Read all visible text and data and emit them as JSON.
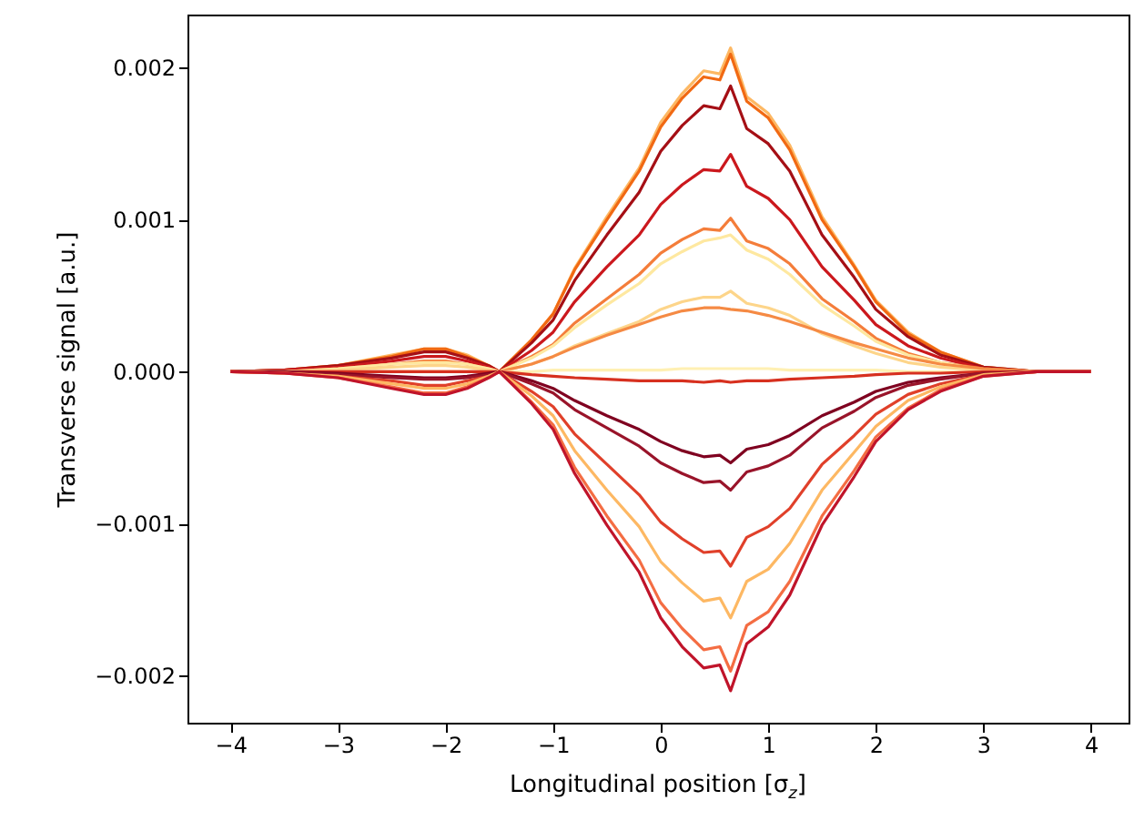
{
  "chart_data": {
    "type": "line",
    "xlabel": "Longitudinal position [σ$_{z}$]",
    "ylabel": "Transverse signal [a.u.]",
    "x": [
      -4,
      -3.5,
      -3,
      -2.5,
      -2.2,
      -2,
      -1.8,
      -1.6,
      -1.5,
      -1.2,
      -1,
      -0.8,
      -0.5,
      -0.2,
      0,
      0.2,
      0.4,
      0.55,
      0.65,
      0.8,
      1,
      1.2,
      1.5,
      1.8,
      2,
      2.3,
      2.6,
      3,
      3.5,
      4
    ],
    "xlim": [
      -4.4,
      4.35
    ],
    "ylim": [
      -0.00231,
      0.00235
    ],
    "xticks": [
      {
        "value": -4,
        "label": "−4"
      },
      {
        "value": -3,
        "label": "−3"
      },
      {
        "value": -2,
        "label": "−2"
      },
      {
        "value": -1,
        "label": "−1"
      },
      0,
      1,
      2,
      3,
      4
    ],
    "yticks": [
      {
        "value": -0.002,
        "label": "−0.002"
      },
      {
        "value": -0.001,
        "label": "−0.001"
      },
      {
        "value": 0,
        "label": "0.000"
      },
      {
        "value": 0.001,
        "label": "0.001"
      },
      {
        "value": 0.002,
        "label": "0.002"
      }
    ],
    "series": [
      {
        "color": "#fdb863",
        "values": [
          0,
          1e-05,
          4e-05,
          0.00011,
          0.00015,
          0.00015,
          0.00011,
          4e-05,
          0,
          0.00021,
          0.00038,
          0.00068,
          0.00102,
          0.00134,
          0.00164,
          0.00183,
          0.00198,
          0.00196,
          0.00213,
          0.00181,
          0.0017,
          0.00149,
          0.00102,
          0.0007,
          0.00047,
          0.00026,
          0.00013,
          3e-05,
          0,
          0
        ]
      },
      {
        "color": "#f16913",
        "values": [
          0,
          1e-05,
          4e-05,
          0.0001,
          0.00015,
          0.00015,
          0.0001,
          4e-05,
          0,
          0.00021,
          0.00038,
          0.00067,
          0.001,
          0.00132,
          0.00161,
          0.0018,
          0.00194,
          0.00192,
          0.00209,
          0.00178,
          0.00167,
          0.00146,
          0.001,
          0.00069,
          0.00046,
          0.00025,
          0.00013,
          3e-05,
          0,
          0
        ]
      },
      {
        "color": "#a50f15",
        "values": [
          0,
          1e-05,
          4e-05,
          9e-05,
          0.00013,
          0.00013,
          9e-05,
          4e-05,
          0,
          0.00019,
          0.00034,
          0.0006,
          0.0009,
          0.00118,
          0.00145,
          0.00162,
          0.00175,
          0.00173,
          0.00188,
          0.0016,
          0.0015,
          0.00132,
          0.0009,
          0.00062,
          0.00041,
          0.00023,
          0.00011,
          3e-05,
          0,
          0
        ]
      },
      {
        "color": "#cb181d",
        "values": [
          0,
          1e-05,
          3e-05,
          7e-05,
          0.0001,
          0.0001,
          7e-05,
          3e-05,
          0,
          0.00014,
          0.00026,
          0.00046,
          0.00069,
          0.0009,
          0.0011,
          0.00123,
          0.00133,
          0.00132,
          0.00143,
          0.00122,
          0.00114,
          0.001,
          0.00069,
          0.00047,
          0.00031,
          0.00017,
          9e-05,
          2e-05,
          0,
          0
        ]
      },
      {
        "color": "#f47d3a",
        "values": [
          0,
          0,
          2e-05,
          5e-05,
          7e-05,
          7e-05,
          5e-05,
          2e-05,
          0,
          0.0001,
          0.00018,
          0.00032,
          0.00048,
          0.00064,
          0.00078,
          0.00087,
          0.00094,
          0.00093,
          0.00101,
          0.00086,
          0.00081,
          0.00071,
          0.00048,
          0.00033,
          0.00022,
          0.00012,
          6e-05,
          2e-05,
          0,
          0
        ]
      },
      {
        "color": "#fee8a0",
        "values": [
          0,
          0,
          2e-05,
          5e-05,
          6e-05,
          6e-05,
          5e-05,
          2e-05,
          0,
          9e-05,
          0.00017,
          0.00029,
          0.00044,
          0.00058,
          0.00071,
          0.00079,
          0.00086,
          0.00088,
          0.0009,
          0.0008,
          0.00074,
          0.00064,
          0.00044,
          0.0003,
          0.0002,
          0.00011,
          6e-05,
          1e-05,
          0,
          0
        ]
      },
      {
        "color": "#fdd58a",
        "values": [
          0,
          0,
          1e-05,
          3e-05,
          4e-05,
          4e-05,
          3e-05,
          1e-05,
          0,
          5e-05,
          0.0001,
          0.00017,
          0.00025,
          0.00033,
          0.00041,
          0.00046,
          0.00049,
          0.00049,
          0.00053,
          0.00045,
          0.00042,
          0.00037,
          0.00025,
          0.00017,
          0.00012,
          6e-05,
          3e-05,
          1e-05,
          0,
          0
        ]
      },
      {
        "color": "#f58a44",
        "values": [
          0,
          0,
          0,
          0,
          0,
          0,
          0,
          0,
          0,
          5e-05,
          0.0001,
          0.00016,
          0.00024,
          0.00031,
          0.00036,
          0.0004,
          0.00042,
          0.00042,
          0.00041,
          0.0004,
          0.00037,
          0.00033,
          0.00026,
          0.00019,
          0.00015,
          9e-05,
          5e-05,
          2e-05,
          0,
          0
        ]
      },
      {
        "color": "#fff0b3",
        "values": [
          0,
          0,
          0,
          0,
          0,
          0,
          0,
          0,
          0,
          0,
          1e-05,
          1e-05,
          1e-05,
          1e-05,
          1e-05,
          2e-05,
          2e-05,
          2e-05,
          2e-05,
          2e-05,
          2e-05,
          1e-05,
          1e-05,
          1e-05,
          1e-05,
          0,
          0,
          0,
          0,
          0
        ]
      },
      {
        "color": "#d7301f",
        "values": [
          0,
          0,
          0,
          0,
          0,
          0,
          0,
          0,
          0,
          -2e-05,
          -3e-05,
          -4e-05,
          -5e-05,
          -6e-05,
          -6e-05,
          -6e-05,
          -7e-05,
          -6e-05,
          -7e-05,
          -6e-05,
          -6e-05,
          -5e-05,
          -4e-05,
          -3e-05,
          -2e-05,
          -1e-05,
          -1e-05,
          0,
          0,
          0
        ]
      },
      {
        "color": "#7f0020",
        "values": [
          0,
          0,
          -1e-05,
          -3e-05,
          -4e-05,
          -4e-05,
          -3e-05,
          -1e-05,
          0,
          -6e-05,
          -0.00011,
          -0.00019,
          -0.00029,
          -0.00038,
          -0.00046,
          -0.00052,
          -0.00056,
          -0.00055,
          -0.0006,
          -0.00051,
          -0.00048,
          -0.00042,
          -0.00029,
          -0.0002,
          -0.00013,
          -7e-05,
          -4e-05,
          -1e-05,
          0,
          0
        ]
      },
      {
        "color": "#99142a",
        "values": [
          0,
          0,
          -2e-05,
          -4e-05,
          -5e-05,
          -5e-05,
          -4e-05,
          -2e-05,
          0,
          -8e-05,
          -0.00014,
          -0.00025,
          -0.00037,
          -0.00049,
          -0.0006,
          -0.00067,
          -0.00073,
          -0.00072,
          -0.00078,
          -0.00066,
          -0.00062,
          -0.00055,
          -0.00037,
          -0.00026,
          -0.00017,
          -9e-05,
          -5e-05,
          -1e-05,
          0,
          0
        ]
      },
      {
        "color": "#e0402a",
        "values": [
          0,
          -1e-05,
          -3e-05,
          -6e-05,
          -9e-05,
          -9e-05,
          -6e-05,
          -3e-05,
          0,
          -0.00013,
          -0.00023,
          -0.00041,
          -0.00061,
          -0.00081,
          -0.00099,
          -0.0011,
          -0.00119,
          -0.00118,
          -0.00128,
          -0.00109,
          -0.00102,
          -0.0009,
          -0.00061,
          -0.00042,
          -0.00028,
          -0.00015,
          -8e-05,
          -2e-05,
          0,
          0
        ]
      },
      {
        "color": "#fdb863",
        "values": [
          0,
          -1e-05,
          -3e-05,
          -8e-05,
          -0.00011,
          -0.00011,
          -8e-05,
          -3e-05,
          0,
          -0.00016,
          -0.00029,
          -0.00052,
          -0.00078,
          -0.00102,
          -0.00125,
          -0.00139,
          -0.00151,
          -0.00149,
          -0.00162,
          -0.00138,
          -0.0013,
          -0.00113,
          -0.00078,
          -0.00053,
          -0.00036,
          -0.00019,
          -0.0001,
          -2e-05,
          0,
          0
        ]
      },
      {
        "color": "#f46d43",
        "values": [
          0,
          -1e-05,
          -4e-05,
          -0.0001,
          -0.00014,
          -0.00014,
          -0.0001,
          -4e-05,
          0,
          -0.0002,
          -0.00035,
          -0.00063,
          -0.00095,
          -0.00124,
          -0.00152,
          -0.00169,
          -0.00183,
          -0.00181,
          -0.00197,
          -0.00167,
          -0.00158,
          -0.00138,
          -0.00095,
          -0.00065,
          -0.00043,
          -0.00024,
          -0.00012,
          -3e-05,
          0,
          0
        ]
      },
      {
        "color": "#c0142a",
        "values": [
          0,
          -1e-05,
          -4e-05,
          -0.00011,
          -0.00015,
          -0.00015,
          -0.00011,
          -4e-05,
          0,
          -0.00021,
          -0.00038,
          -0.00067,
          -0.00101,
          -0.00132,
          -0.00162,
          -0.00181,
          -0.00195,
          -0.00193,
          -0.0021,
          -0.00179,
          -0.00168,
          -0.00147,
          -0.00101,
          -0.00069,
          -0.00046,
          -0.00025,
          -0.00013,
          -3e-05,
          0,
          0
        ]
      }
    ]
  }
}
